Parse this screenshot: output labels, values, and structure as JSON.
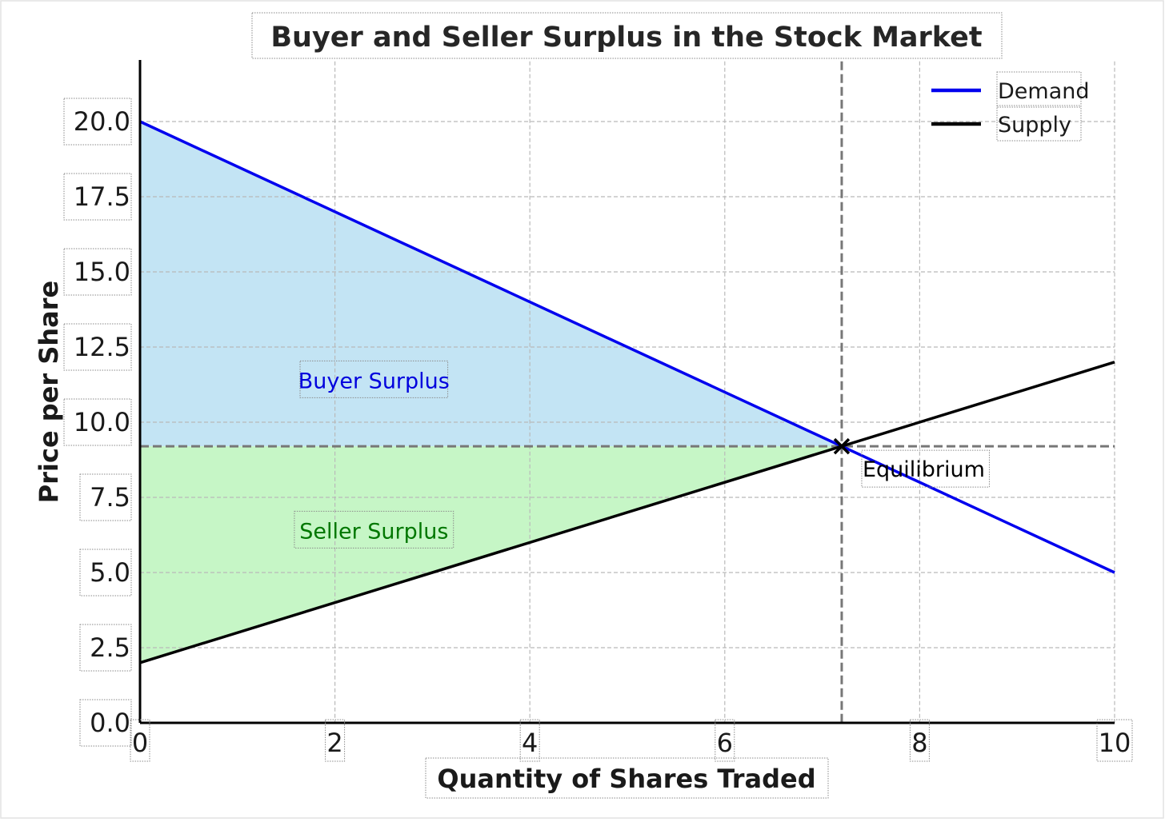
{
  "chart_data": {
    "type": "line",
    "title": "Buyer and Seller Surplus in the Stock Market",
    "xlabel": "Quantity of Shares Traded",
    "ylabel": "Price per Share",
    "xlim": [
      0,
      10
    ],
    "ylim": [
      0,
      22
    ],
    "x_ticks": [
      "0",
      "2",
      "4",
      "6",
      "8",
      "10"
    ],
    "y_ticks": [
      "0.0",
      "2.5",
      "5.0",
      "7.5",
      "10.0",
      "12.5",
      "15.0",
      "17.5",
      "20.0"
    ],
    "grid": true,
    "legend_position": "top-right",
    "series": [
      {
        "name": "Demand",
        "color": "#0000ee",
        "x": [
          0,
          10
        ],
        "y": [
          20,
          5
        ]
      },
      {
        "name": "Supply",
        "color": "#000000",
        "x": [
          0,
          10
        ],
        "y": [
          2,
          12
        ]
      }
    ],
    "equilibrium": {
      "x": 7.2,
      "y": 9.2,
      "label": "Equilibrium"
    },
    "regions": [
      {
        "label": "Buyer Surplus",
        "color": "#c3e4f4",
        "text_color": "#0000dd",
        "polygon": [
          [
            0,
            20
          ],
          [
            7.2,
            9.2
          ],
          [
            0,
            9.2
          ]
        ],
        "label_at": [
          2.4,
          11.4
        ]
      },
      {
        "label": "Seller Surplus",
        "color": "#c6f6c6",
        "text_color": "#007700",
        "polygon": [
          [
            0,
            2
          ],
          [
            7.2,
            9.2
          ],
          [
            0,
            9.2
          ]
        ],
        "label_at": [
          2.4,
          6.4
        ]
      }
    ]
  }
}
